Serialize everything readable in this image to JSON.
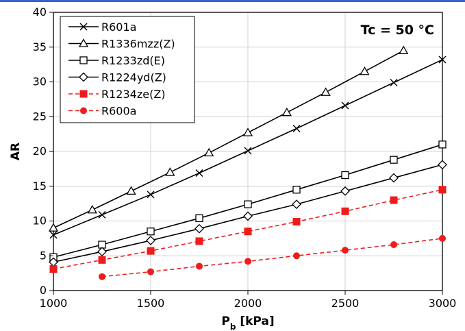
{
  "colors": {
    "top_bar": "#3b63c7",
    "black": "#000000",
    "red": "#ee1c1c"
  },
  "chart_data": {
    "type": "line",
    "annotation": "Tc = 50 °C",
    "xlabel_main": "P",
    "xlabel_sub": "b",
    "xlabel_unit": " [kPa]",
    "ylabel": "AR",
    "xlim": [
      1000,
      3000
    ],
    "ylim": [
      0,
      40
    ],
    "x_ticks": [
      1000,
      1500,
      2000,
      2500,
      3000
    ],
    "y_ticks": [
      0,
      5,
      10,
      15,
      20,
      25,
      30,
      35,
      40
    ],
    "grid": true,
    "legend_position": "top-left",
    "series": [
      {
        "name": "R601a",
        "marker": "x",
        "color": "#000000",
        "dashed": false,
        "x": [
          1000,
          1250,
          1500,
          1750,
          2000,
          2250,
          2500,
          2750,
          3000
        ],
        "y": [
          8.0,
          10.9,
          13.8,
          16.9,
          20.1,
          23.3,
          26.6,
          29.9,
          33.2
        ]
      },
      {
        "name": "R1336mzz(Z)",
        "marker": "triangle",
        "color": "#000000",
        "dashed": false,
        "x": [
          1000,
          1200,
          1400,
          1600,
          1800,
          2000,
          2200,
          2400,
          2600,
          2800
        ],
        "y": [
          9.0,
          11.6,
          14.3,
          17.0,
          19.8,
          22.7,
          25.6,
          28.5,
          31.5,
          34.5
        ]
      },
      {
        "name": "R1233zd(E)",
        "marker": "square-open",
        "color": "#000000",
        "dashed": false,
        "x": [
          1000,
          1250,
          1500,
          1750,
          2000,
          2250,
          2500,
          2750,
          3000
        ],
        "y": [
          4.8,
          6.6,
          8.5,
          10.4,
          12.4,
          14.5,
          16.6,
          18.8,
          21.0
        ]
      },
      {
        "name": "R1224yd(Z)",
        "marker": "diamond-open",
        "color": "#000000",
        "dashed": false,
        "x": [
          1000,
          1250,
          1500,
          1750,
          2000,
          2250,
          2500,
          2750,
          3000
        ],
        "y": [
          4.1,
          5.6,
          7.2,
          8.9,
          10.7,
          12.4,
          14.3,
          16.2,
          18.1
        ]
      },
      {
        "name": "R1234ze(Z)",
        "marker": "square-filled",
        "color": "#ee1c1c",
        "dashed": true,
        "x": [
          1000,
          1250,
          1500,
          1750,
          2000,
          2250,
          2500,
          2750,
          3000
        ],
        "y": [
          3.1,
          4.4,
          5.7,
          7.1,
          8.5,
          9.9,
          11.4,
          13.0,
          14.5
        ]
      },
      {
        "name": "R600a",
        "marker": "circle-filled",
        "color": "#ee1c1c",
        "dashed": true,
        "x": [
          1250,
          1500,
          1750,
          2000,
          2250,
          2500,
          2750,
          3000
        ],
        "y": [
          2.0,
          2.7,
          3.5,
          4.2,
          5.0,
          5.8,
          6.6,
          7.5
        ]
      }
    ]
  }
}
